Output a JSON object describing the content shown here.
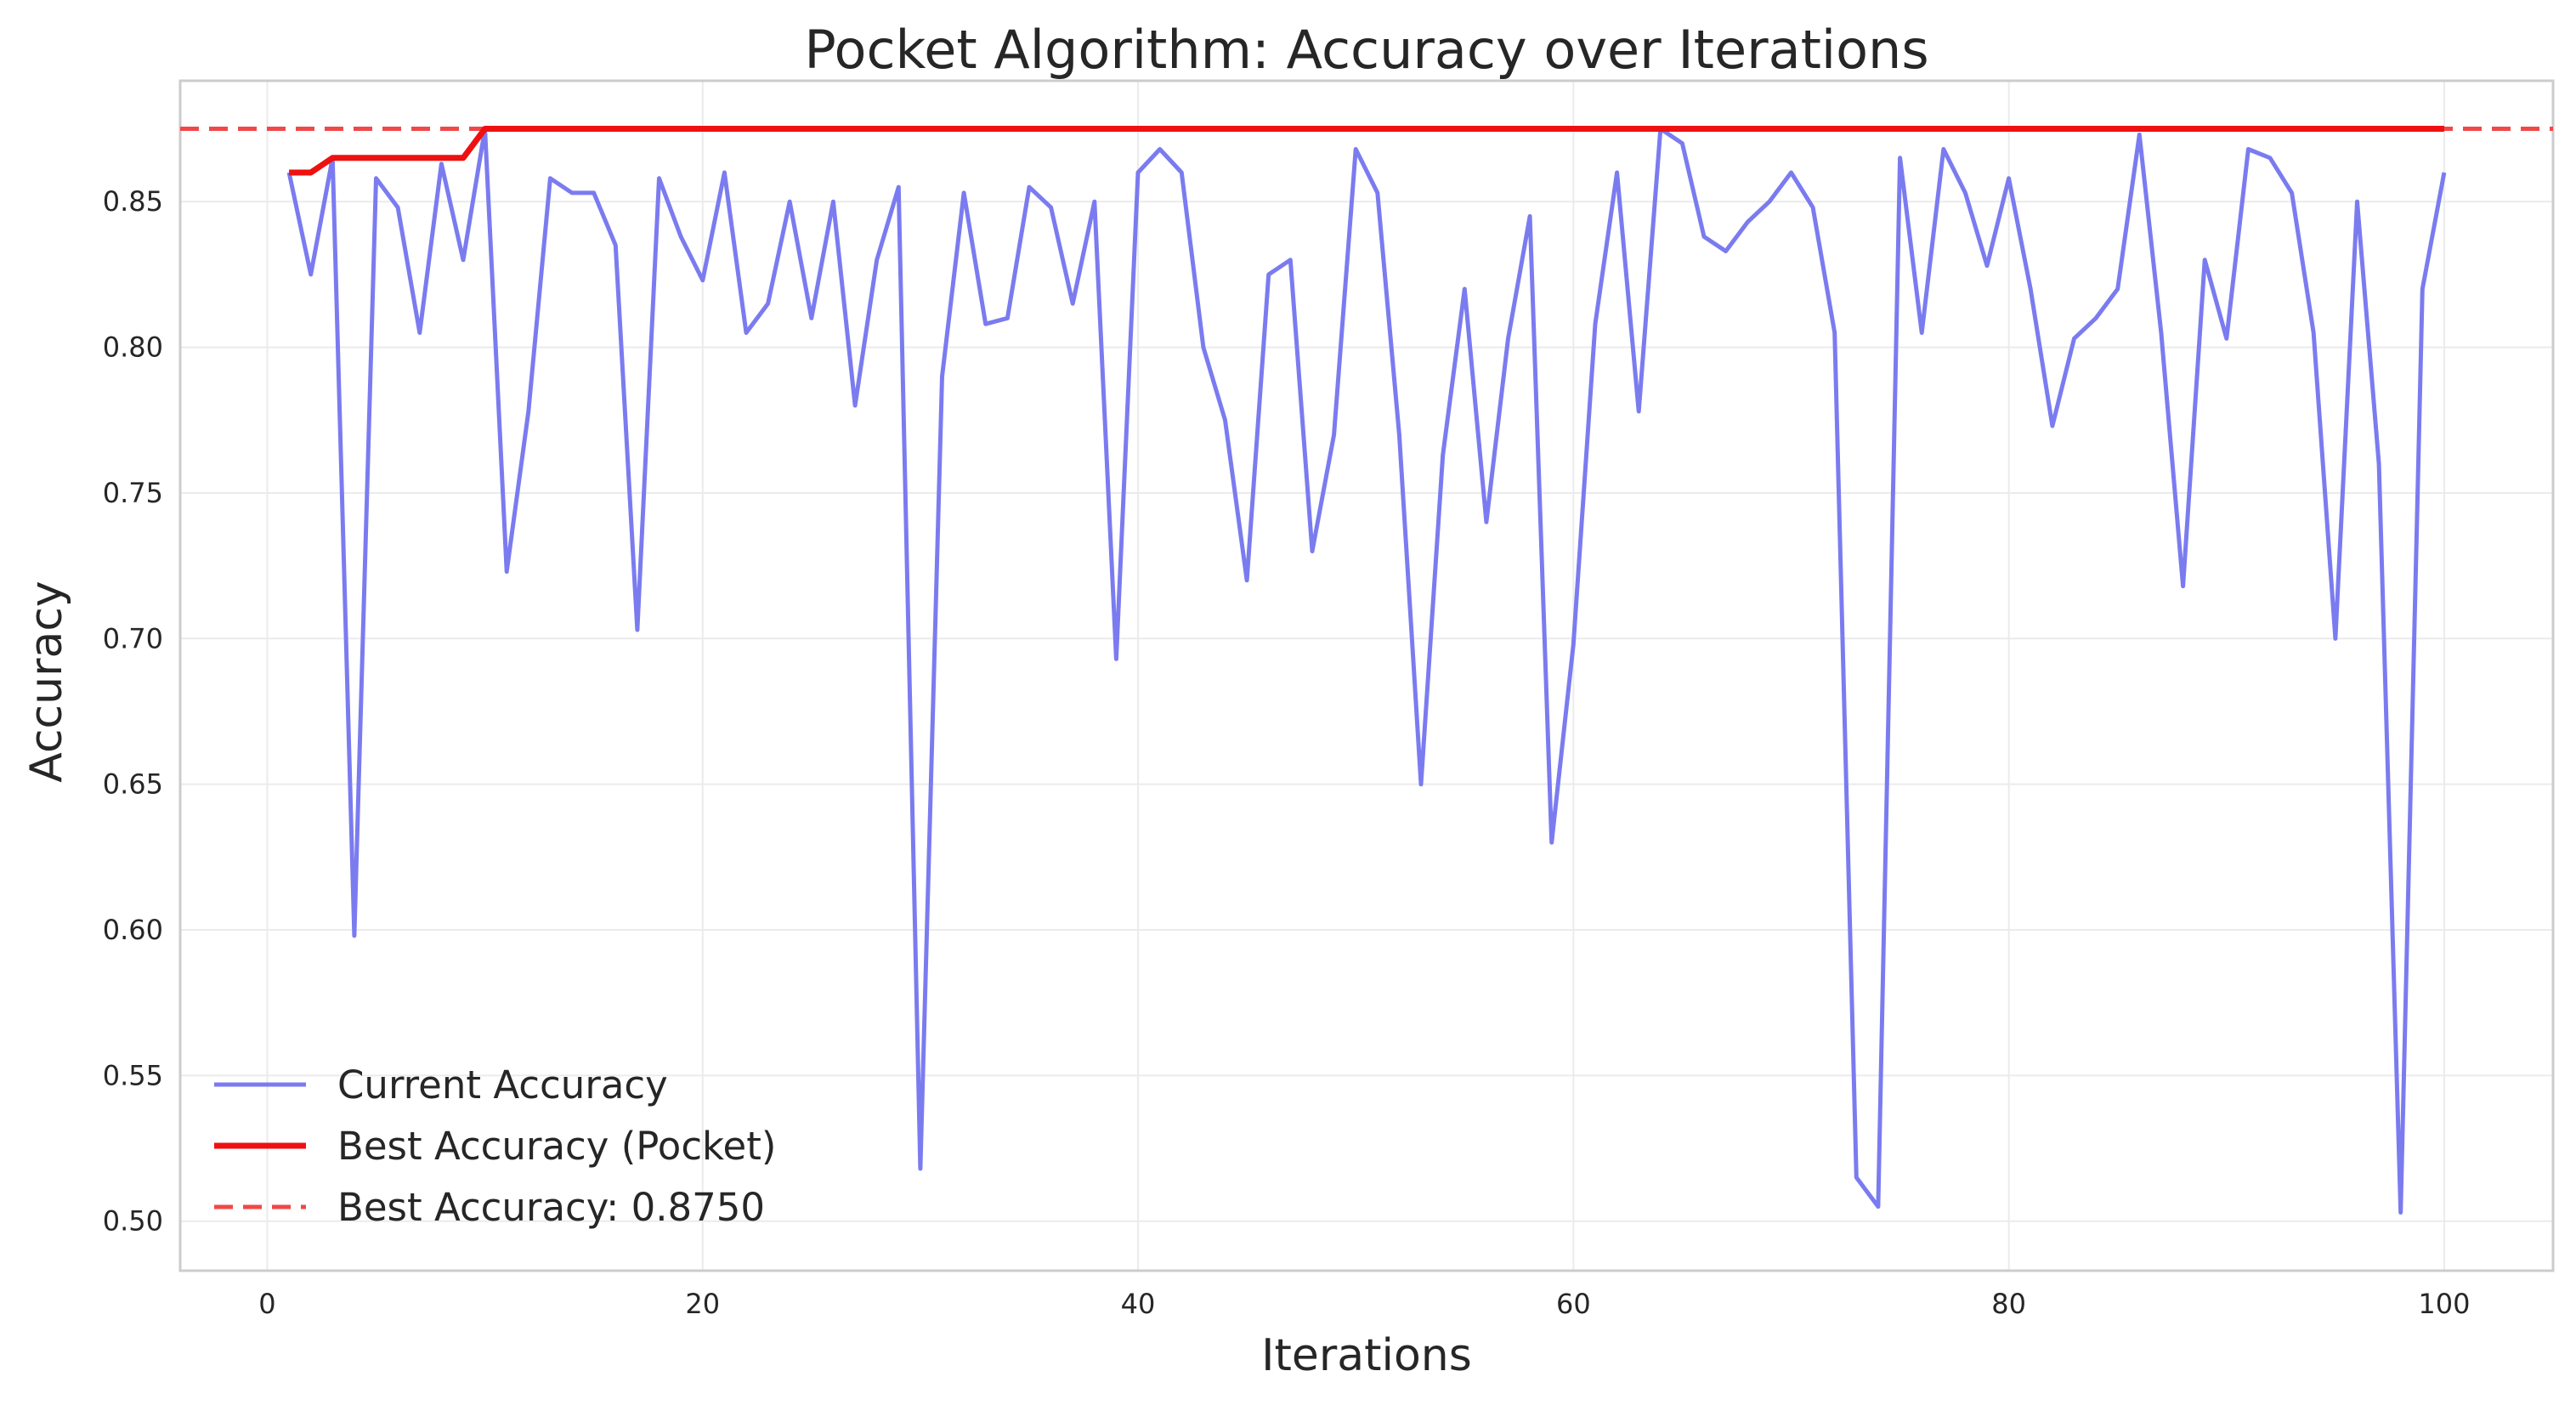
{
  "chart_data": {
    "type": "line",
    "title": "Pocket Algorithm: Accuracy over Iterations",
    "xlabel": "Iterations",
    "ylabel": "Accuracy",
    "xlim": [
      -4,
      105
    ],
    "ylim": [
      0.483,
      0.8915
    ],
    "xticks": [
      0,
      20,
      40,
      60,
      80,
      100
    ],
    "xtick_labels": [
      "0",
      "20",
      "40",
      "60",
      "80",
      "100"
    ],
    "yticks": [
      0.5,
      0.55,
      0.6,
      0.65,
      0.7,
      0.75,
      0.8,
      0.85
    ],
    "ytick_labels": [
      "0.50",
      "0.55",
      "0.60",
      "0.65",
      "0.70",
      "0.75",
      "0.80",
      "0.85"
    ],
    "grid": true,
    "legend_position": "bottom-left",
    "x": [
      1,
      2,
      3,
      4,
      5,
      6,
      7,
      8,
      9,
      10,
      11,
      12,
      13,
      14,
      15,
      16,
      17,
      18,
      19,
      20,
      21,
      22,
      23,
      24,
      25,
      26,
      27,
      28,
      29,
      30,
      31,
      32,
      33,
      34,
      35,
      36,
      37,
      38,
      39,
      40,
      41,
      42,
      43,
      44,
      45,
      46,
      47,
      48,
      49,
      50,
      51,
      52,
      53,
      54,
      55,
      56,
      57,
      58,
      59,
      60,
      61,
      62,
      63,
      64,
      65,
      66,
      67,
      68,
      69,
      70,
      71,
      72,
      73,
      74,
      75,
      76,
      77,
      78,
      79,
      80,
      81,
      82,
      83,
      84,
      85,
      86,
      87,
      88,
      89,
      90,
      91,
      92,
      93,
      94,
      95,
      96,
      97,
      98,
      99,
      100
    ],
    "series": [
      {
        "name": "Current Accuracy",
        "color": "#7b7bf0",
        "style": "solid",
        "values": [
          0.86,
          0.825,
          0.865,
          0.598,
          0.858,
          0.848,
          0.805,
          0.863,
          0.83,
          0.875,
          0.723,
          0.778,
          0.858,
          0.853,
          0.853,
          0.835,
          0.703,
          0.858,
          0.838,
          0.823,
          0.86,
          0.805,
          0.815,
          0.85,
          0.81,
          0.85,
          0.78,
          0.83,
          0.855,
          0.518,
          0.79,
          0.853,
          0.808,
          0.81,
          0.855,
          0.848,
          0.815,
          0.85,
          0.693,
          0.86,
          0.868,
          0.86,
          0.8,
          0.775,
          0.72,
          0.825,
          0.83,
          0.73,
          0.77,
          0.868,
          0.853,
          0.77,
          0.65,
          0.763,
          0.82,
          0.74,
          0.803,
          0.845,
          0.63,
          0.698,
          0.808,
          0.86,
          0.778,
          0.875,
          0.87,
          0.838,
          0.833,
          0.843,
          0.85,
          0.86,
          0.848,
          0.805,
          0.515,
          0.505,
          0.865,
          0.805,
          0.868,
          0.853,
          0.828,
          0.858,
          0.82,
          0.773,
          0.803,
          0.81,
          0.82,
          0.873,
          0.805,
          0.718,
          0.83,
          0.803,
          0.868,
          0.865,
          0.853,
          0.805,
          0.7,
          0.85,
          0.76,
          0.503,
          0.82,
          0.86
        ]
      },
      {
        "name": "Best Accuracy (Pocket)",
        "color": "#ee1111",
        "style": "solid",
        "values": [
          0.86,
          0.86,
          0.865,
          0.865,
          0.865,
          0.865,
          0.865,
          0.865,
          0.865,
          0.875,
          0.875,
          0.875,
          0.875,
          0.875,
          0.875,
          0.875,
          0.875,
          0.875,
          0.875,
          0.875,
          0.875,
          0.875,
          0.875,
          0.875,
          0.875,
          0.875,
          0.875,
          0.875,
          0.875,
          0.875,
          0.875,
          0.875,
          0.875,
          0.875,
          0.875,
          0.875,
          0.875,
          0.875,
          0.875,
          0.875,
          0.875,
          0.875,
          0.875,
          0.875,
          0.875,
          0.875,
          0.875,
          0.875,
          0.875,
          0.875,
          0.875,
          0.875,
          0.875,
          0.875,
          0.875,
          0.875,
          0.875,
          0.875,
          0.875,
          0.875,
          0.875,
          0.875,
          0.875,
          0.875,
          0.875,
          0.875,
          0.875,
          0.875,
          0.875,
          0.875,
          0.875,
          0.875,
          0.875,
          0.875,
          0.875,
          0.875,
          0.875,
          0.875,
          0.875,
          0.875,
          0.875,
          0.875,
          0.875,
          0.875,
          0.875,
          0.875,
          0.875,
          0.875,
          0.875,
          0.875,
          0.875,
          0.875,
          0.875,
          0.875,
          0.875,
          0.875,
          0.875,
          0.875,
          0.875,
          0.875
        ]
      }
    ],
    "reference_line": {
      "name": "Best Accuracy: 0.8750",
      "y": 0.875,
      "color": "#f04848",
      "style": "dashed"
    }
  }
}
